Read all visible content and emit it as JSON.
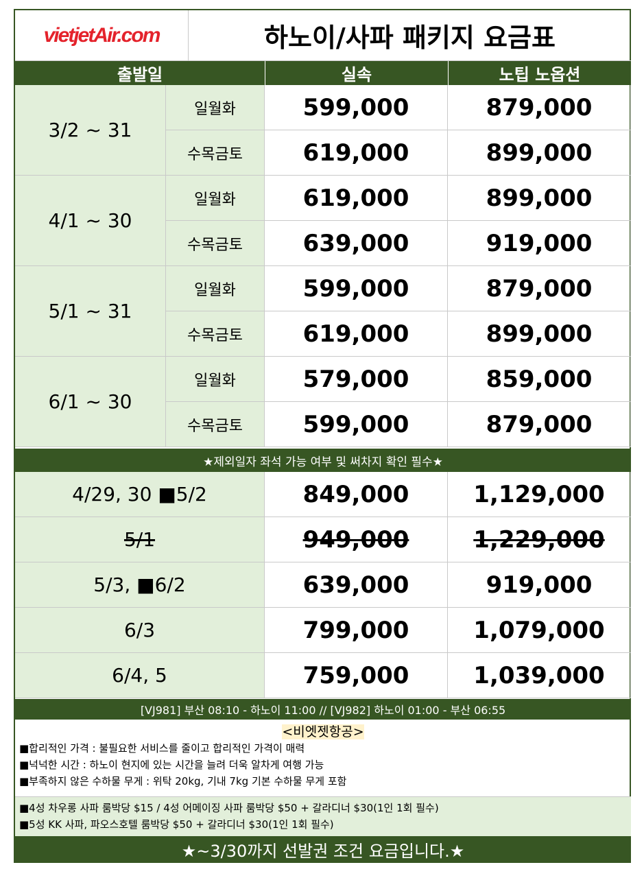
{
  "logo": "vietjetAir.com",
  "title": "하노이/사파 패키지 요금표",
  "header": {
    "date": "출발일",
    "standard": "실속",
    "premium": "노팁 노옵션"
  },
  "periods": [
    {
      "range": "3/2 ~ 31",
      "rows": [
        {
          "days": "일월화",
          "standard": "599,000",
          "premium": "879,000"
        },
        {
          "days": "수목금토",
          "standard": "619,000",
          "premium": "899,000"
        }
      ]
    },
    {
      "range": "4/1 ~ 30",
      "rows": [
        {
          "days": "일월화",
          "standard": "619,000",
          "premium": "899,000"
        },
        {
          "days": "수목금토",
          "standard": "639,000",
          "premium": "919,000"
        }
      ]
    },
    {
      "range": "5/1 ~ 31",
      "rows": [
        {
          "days": "일월화",
          "standard": "599,000",
          "premium": "879,000"
        },
        {
          "days": "수목금토",
          "standard": "619,000",
          "premium": "899,000"
        }
      ]
    },
    {
      "range": "6/1 ~ 30",
      "rows": [
        {
          "days": "일월화",
          "standard": "579,000",
          "premium": "859,000"
        },
        {
          "days": "수목금토",
          "standard": "599,000",
          "premium": "879,000"
        }
      ]
    }
  ],
  "notice": "★제외일자 좌석 가능 여부 및 써차지 확인 필수★",
  "special": [
    {
      "date": "4/29, 30 ■5/2",
      "standard": "849,000",
      "premium": "1,129,000",
      "struck": false
    },
    {
      "date": "5/1",
      "standard": "949,000",
      "premium": "1,229,000",
      "struck": true
    },
    {
      "date": "5/3, ■6/2",
      "standard": "639,000",
      "premium": "919,000",
      "struck": false
    },
    {
      "date": "6/3",
      "standard": "799,000",
      "premium": "1,079,000",
      "struck": false
    },
    {
      "date": "6/4, 5",
      "standard": "759,000",
      "premium": "1,039,000",
      "struck": false
    }
  ],
  "flight": "[VJ981] 부산 08:10 - 하노이 11:00 // [VJ982] 하노이 01:00 - 부산 06:55",
  "airline": {
    "heading": "<비엣젯항공>",
    "points": [
      "■합리적인 가격 : 불필요한 서비스를 줄이고 합리적인 가격이 매력",
      "■넉넉한 시간 : 하노이 현지에 있는 시간을 늘려 더욱 알차게 여행 가능",
      "■부족하지 않은 수하물 무게 : 위탁 20kg, 기내 7kg 기본 수하물 무게 포함"
    ]
  },
  "hotels": [
    "■4성 차우롱 사파 룸박당 $15 / 4성 어메이징 사파 룸박당 $50 + 갈라디너 $30(1인 1회 필수)",
    "■5성 KK 사파, 파오스호텔 룸박당 $50 + 갈라디너 $30(1인 1회 필수)"
  ],
  "footer": "★~3/30까지 선발권 조건 요금입니다.★",
  "colors": {
    "dark_green": "#375623",
    "light_green": "#e2efda",
    "logo_red": "#e4222b",
    "highlight": "#fff2cc"
  }
}
